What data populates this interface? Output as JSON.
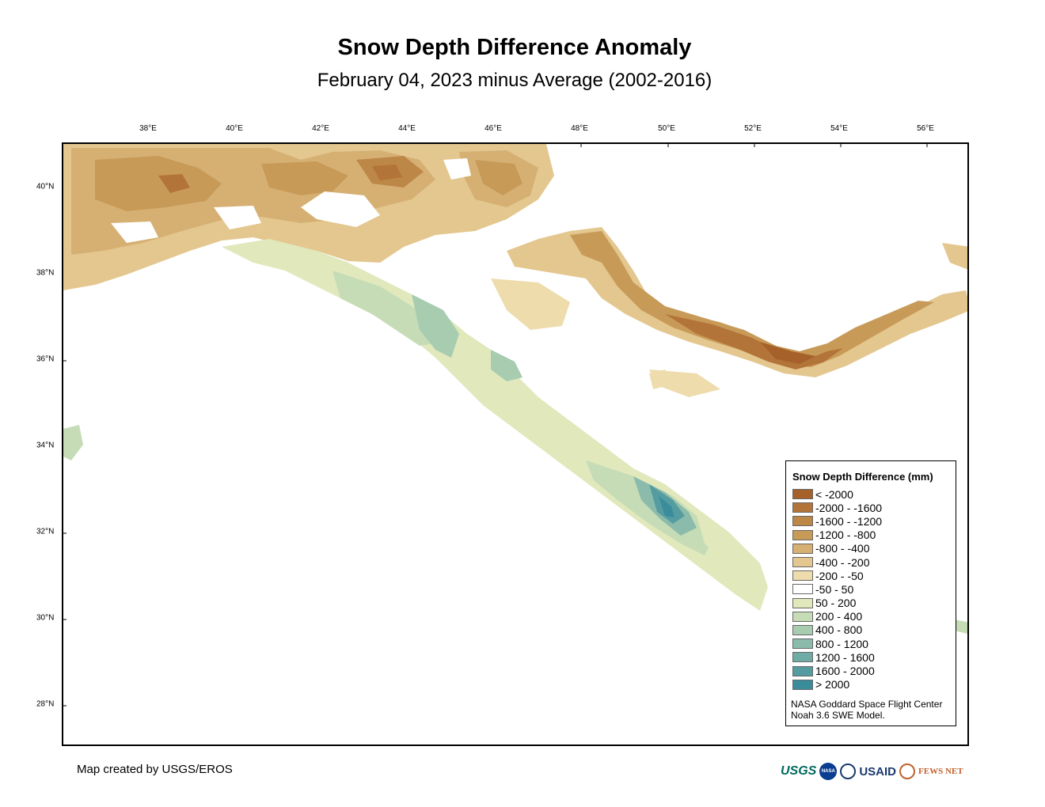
{
  "title": "Snow Depth Difference Anomaly",
  "subtitle": "February 04, 2023 minus Average (2002-2016)",
  "longitude_labels": [
    "38°E",
    "40°E",
    "42°E",
    "44°E",
    "46°E",
    "48°E",
    "50°E",
    "52°E",
    "54°E",
    "56°E"
  ],
  "latitude_labels": [
    "40°N",
    "38°N",
    "36°N",
    "34°N",
    "32°N",
    "30°N",
    "28°N"
  ],
  "legend": {
    "title": "Snow Depth Difference (mm)",
    "items": [
      {
        "label": "< -2000",
        "color": "#a6612a"
      },
      {
        "label": "-2000 - -1600",
        "color": "#b27438"
      },
      {
        "label": "-1600 - -1200",
        "color": "#bd8747"
      },
      {
        "label": "-1200 - -800",
        "color": "#c89a58"
      },
      {
        "label": "-800 - -400",
        "color": "#d6b073"
      },
      {
        "label": "-400 - -200",
        "color": "#e3c78f"
      },
      {
        "label": "-200 - -50",
        "color": "#eedcad"
      },
      {
        "label": "-50 - 50",
        "color": "#ffffff"
      },
      {
        "label": "50 - 200",
        "color": "#e0e8bc"
      },
      {
        "label": "200 - 400",
        "color": "#c5dcb6"
      },
      {
        "label": "400 - 800",
        "color": "#a7ccb0"
      },
      {
        "label": "800 - 1200",
        "color": "#8bbcab"
      },
      {
        "label": "1200 - 1600",
        "color": "#70aca6"
      },
      {
        "label": "1600 - 2000",
        "color": "#559ca0"
      },
      {
        "label": "> 2000",
        "color": "#3a8c9b"
      }
    ],
    "source_line1": "NASA Goddard Space Flight Center",
    "source_line2": "Noah 3.6 SWE Model."
  },
  "credit": "Map created by USGS/EROS",
  "logos": {
    "usgs": "USGS",
    "nasa": "NASA",
    "usaid": "USAID",
    "fewsnet": "FEWS NET"
  }
}
